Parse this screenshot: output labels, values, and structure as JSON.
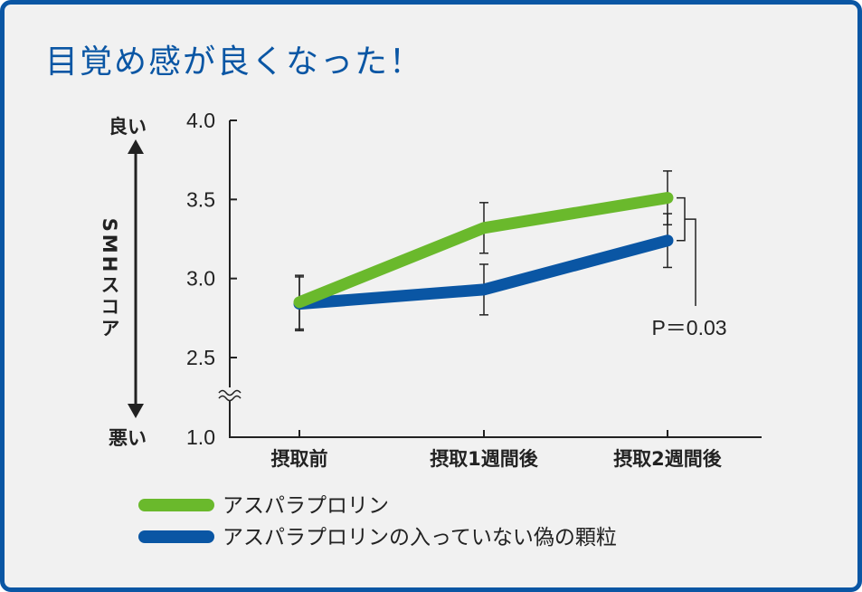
{
  "colors": {
    "frame": "#0a56a4",
    "title": "#0a56a4",
    "background": "#f1f1f1",
    "series_green": "#6ab92c",
    "series_blue": "#0a56a4",
    "ink": "#222222"
  },
  "chart_data": {
    "type": "line",
    "title": "目覚め感が良くなった！",
    "ylabel": "SMHスコア",
    "y_top_label": "良い",
    "y_bottom_label": "悪い",
    "categories": [
      "摂取前",
      "摂取1週間後",
      "摂取2週間後"
    ],
    "y_ticks": [
      "4.0",
      "3.5",
      "3.0",
      "2.5",
      "1.0"
    ],
    "ylim": [
      1.0,
      4.0
    ],
    "axis_break": true,
    "series": [
      {
        "name": "アスパラプロリン",
        "color": "#6ab92c",
        "values": [
          2.85,
          3.32,
          3.51
        ],
        "error": [
          0.17,
          0.16,
          0.17
        ]
      },
      {
        "name": "アスパラプロリンの入っていない偽の顆粒",
        "color": "#0a56a4",
        "values": [
          2.84,
          2.93,
          3.24
        ],
        "error": [
          0.17,
          0.16,
          0.17
        ]
      }
    ],
    "annotation": "P＝0.03"
  }
}
